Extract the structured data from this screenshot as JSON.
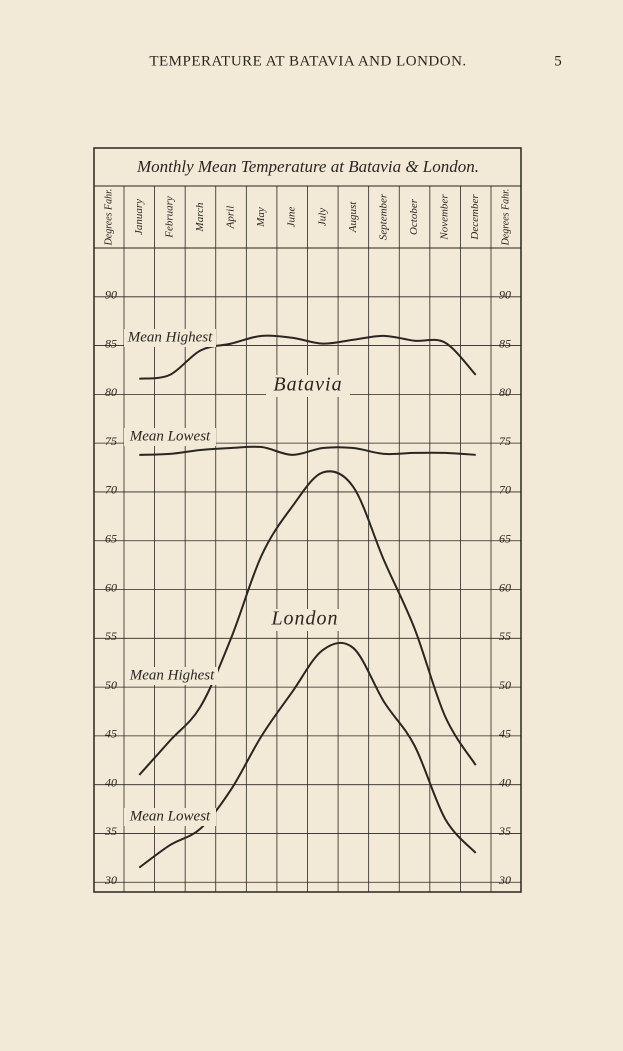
{
  "page_header": {
    "title": "TEMPERATURE AT BATAVIA AND LONDON.",
    "page_number": "5"
  },
  "chart_data": {
    "type": "line",
    "title": "Monthly Mean Temperature at Batavia & London.",
    "y_axis_label": "Degrees Fahr.",
    "categories": [
      "January",
      "February",
      "March",
      "April",
      "May",
      "June",
      "July",
      "August",
      "September",
      "October",
      "November",
      "December"
    ],
    "ylim": [
      29,
      95
    ],
    "yticks": [
      30,
      35,
      40,
      45,
      50,
      55,
      60,
      65,
      70,
      75,
      80,
      85,
      90
    ],
    "grid": true,
    "annotations": [
      "Batavia",
      "London"
    ],
    "series": [
      {
        "name": "Mean Highest",
        "color": "#2a2622",
        "values": [
          81.6,
          82,
          84.5,
          85.2,
          86,
          85.8,
          85.2,
          85.6,
          86,
          85.5,
          85.3,
          82
        ]
      },
      {
        "name": "Mean Lowest",
        "color": "#2a2622",
        "values": [
          73.8,
          73.9,
          74.3,
          74.5,
          74.6,
          73.8,
          74.5,
          74.5,
          73.9,
          74,
          74,
          73.8
        ]
      },
      {
        "name": "Mean Highest",
        "color": "#2a2622",
        "values": [
          41,
          44.5,
          48,
          55,
          63.5,
          68.5,
          72,
          70.5,
          63,
          56,
          47,
          42
        ]
      },
      {
        "name": "Mean Lowest",
        "color": "#2a2622",
        "values": [
          31.5,
          33.8,
          35.5,
          39.5,
          45,
          49.5,
          53.8,
          54,
          48.5,
          44,
          36.5,
          33
        ]
      }
    ]
  }
}
